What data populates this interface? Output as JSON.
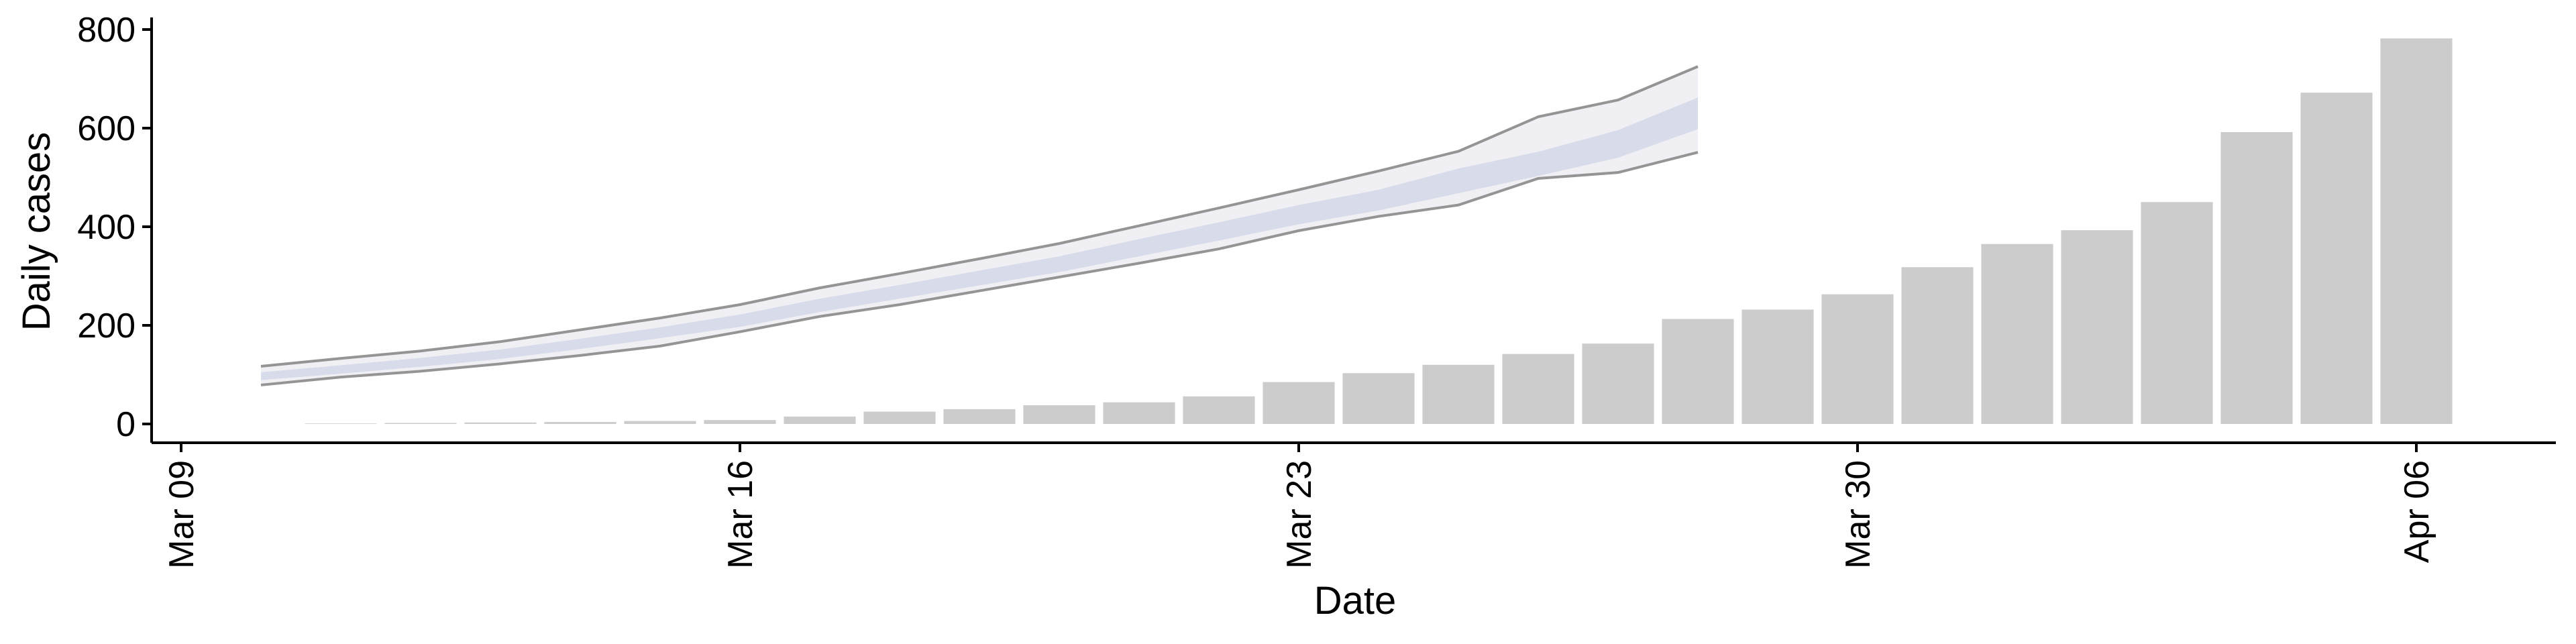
{
  "chart_data": {
    "type": "bar",
    "title": "",
    "xlabel": "Date",
    "ylabel": "Daily cases",
    "x_ticks": [
      "Mar 09",
      "Mar 16",
      "Mar 23",
      "Mar 30",
      "Apr 06"
    ],
    "y_ticks": [
      0,
      200,
      400,
      600,
      800
    ],
    "xlim": [
      "2020-03-09",
      "2020-04-07"
    ],
    "ylim": [
      0,
      800
    ],
    "grid": false,
    "bars": {
      "color": "#cccccc",
      "dates": [
        "2020-03-11",
        "2020-03-12",
        "2020-03-13",
        "2020-03-14",
        "2020-03-15",
        "2020-03-16",
        "2020-03-17",
        "2020-03-18",
        "2020-03-19",
        "2020-03-20",
        "2020-03-21",
        "2020-03-22",
        "2020-03-23",
        "2020-03-24",
        "2020-03-25",
        "2020-03-26",
        "2020-03-27",
        "2020-03-28",
        "2020-03-29",
        "2020-03-30",
        "2020-03-31",
        "2020-04-01",
        "2020-04-02",
        "2020-04-03",
        "2020-04-04",
        "2020-04-05",
        "2020-04-06"
      ],
      "values": [
        1,
        2,
        3,
        4,
        6,
        8,
        15,
        25,
        30,
        38,
        44,
        56,
        85,
        103,
        120,
        142,
        163,
        213,
        232,
        263,
        318,
        365,
        393,
        450,
        592,
        672,
        782
      ]
    },
    "forecast": {
      "dates": [
        "2020-03-10",
        "2020-03-11",
        "2020-03-12",
        "2020-03-13",
        "2020-03-14",
        "2020-03-15",
        "2020-03-16",
        "2020-03-17",
        "2020-03-18",
        "2020-03-19",
        "2020-03-20",
        "2020-03-21",
        "2020-03-22",
        "2020-03-23",
        "2020-03-24",
        "2020-03-25",
        "2020-03-26",
        "2020-03-27",
        "2020-03-28"
      ],
      "outer_upper": [
        117,
        133,
        148,
        167,
        191,
        215,
        242,
        276,
        305,
        335,
        366,
        402,
        438,
        475,
        513,
        553,
        623,
        657,
        725
      ],
      "inner_upper": [
        105,
        119,
        134,
        151,
        173,
        196,
        222,
        254,
        282,
        311,
        340,
        375,
        409,
        444,
        475,
        518,
        552,
        596,
        662
      ],
      "median": [
        96,
        110,
        124,
        141,
        162,
        185,
        209,
        239,
        266,
        294,
        322,
        355,
        388,
        422,
        452,
        488,
        526,
        564,
        628
      ],
      "inner_lower": [
        89,
        102,
        116,
        132,
        152,
        174,
        197,
        227,
        254,
        281,
        308,
        340,
        372,
        405,
        433,
        468,
        503,
        540,
        598
      ],
      "outer_lower": [
        79,
        95,
        107,
        122,
        139,
        158,
        187,
        218,
        242,
        270,
        298,
        326,
        355,
        392,
        421,
        444,
        498,
        510,
        551
      ],
      "outer_band_color": "#ebebf0",
      "inner_band_color": "#d5d8e8",
      "boundary_line_color": "#8a8a8a"
    }
  }
}
